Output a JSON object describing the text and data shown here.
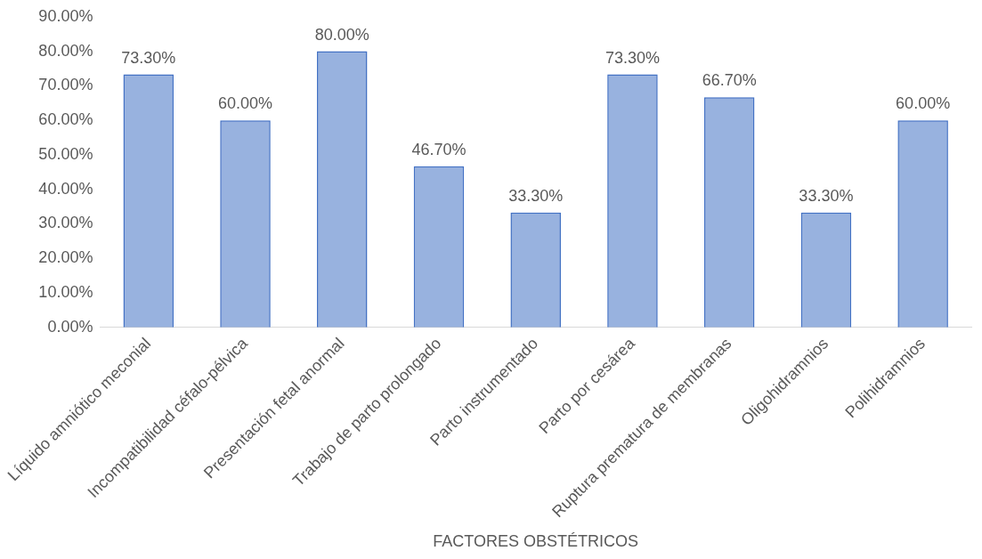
{
  "chart_data": {
    "type": "bar",
    "xlabel": "FACTORES OBSTÉTRICOS",
    "categories": [
      "Líquido amniótico meconial",
      "Incompatibilidad céfalo-pélvica",
      "Presentación fetal anormal",
      "Trabajo de parto prolongado",
      "Parto instrumentado",
      "Parto por cesárea",
      "Ruptura prematura de membranas",
      "Oligohidramnios",
      "Polihidramnios"
    ],
    "values": [
      73.3,
      60,
      80,
      46.7,
      33.3,
      73.3,
      66.7,
      33.3,
      60
    ],
    "value_labels": [
      "73.30%",
      "60.00%",
      "80.00%",
      "46.70%",
      "33.30%",
      "73.30%",
      "66.70%",
      "33.30%",
      "60.00%"
    ],
    "color": "#4472c4",
    "ylim": [
      0,
      90
    ],
    "yticks": [
      {
        "value": 0,
        "label": "0.00%"
      },
      {
        "value": 10,
        "label": "10.00%"
      },
      {
        "value": 20,
        "label": "20.00%"
      },
      {
        "value": 30,
        "label": "30.00%"
      },
      {
        "value": 40,
        "label": "40.00%"
      },
      {
        "value": 50,
        "label": "50.00%"
      },
      {
        "value": 60,
        "label": "60.00%"
      },
      {
        "value": 70,
        "label": "70.00%"
      },
      {
        "value": 80,
        "label": "80.00%"
      },
      {
        "value": 90,
        "label": "90.00%"
      }
    ],
    "grid": false,
    "legend": false
  }
}
